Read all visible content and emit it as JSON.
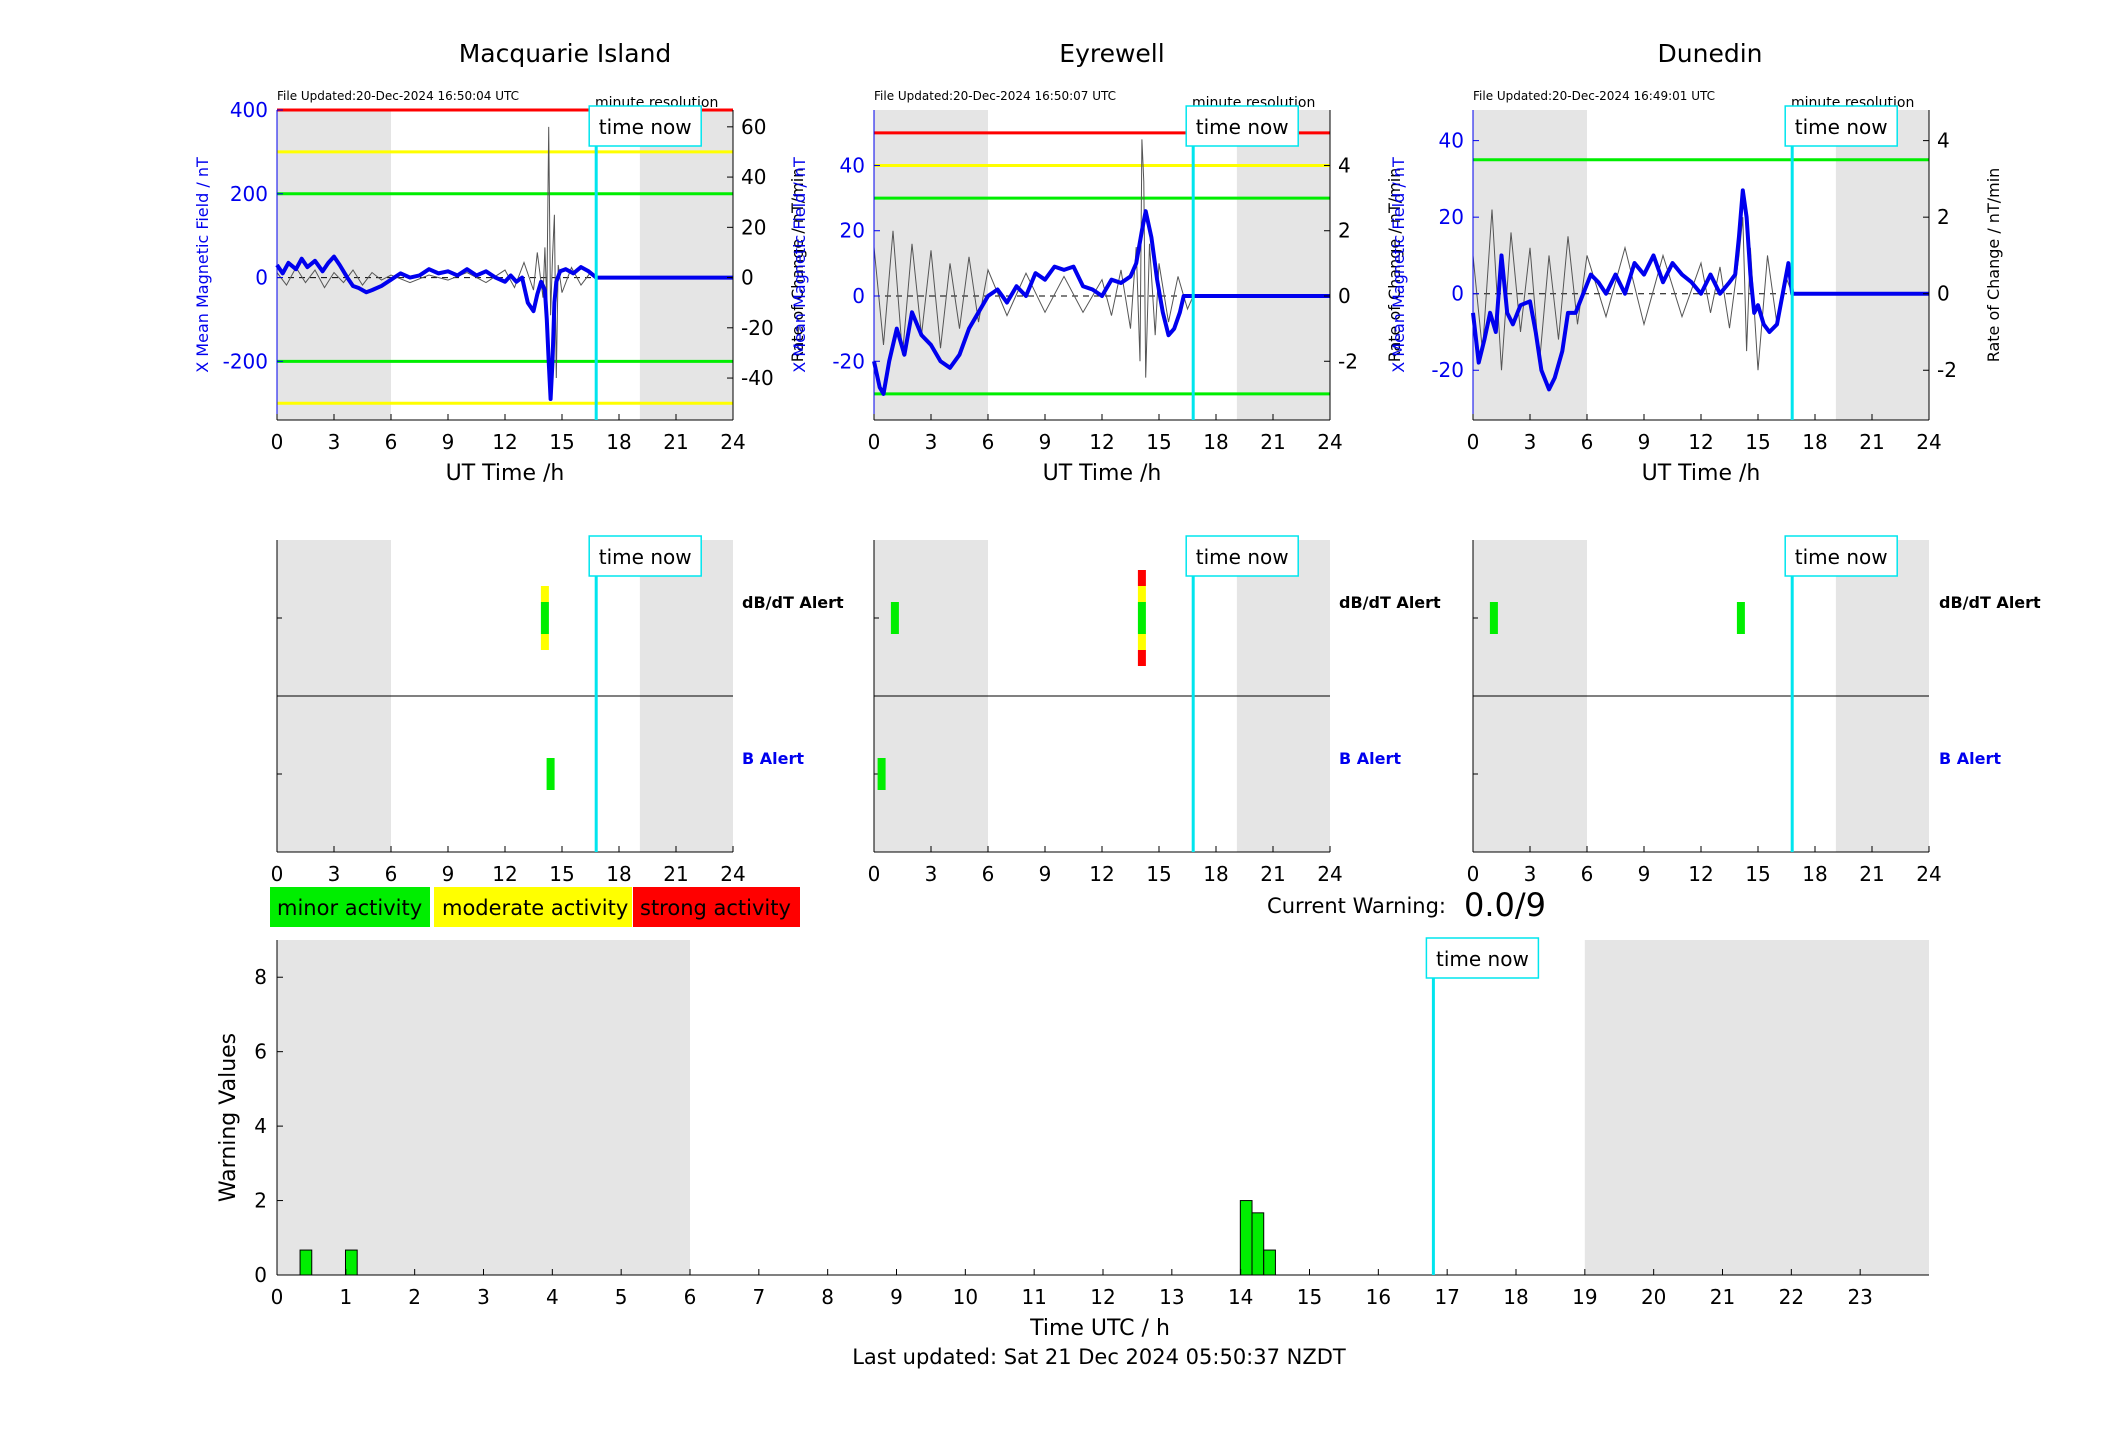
{
  "colors": {
    "field": "#0000ee",
    "rate": "#555555",
    "night": "#e5e5e5",
    "now": "#00e5ee",
    "red": "#ff0000",
    "yellow": "#ffff00",
    "green": "#00ee00",
    "black": "#000000"
  },
  "labels": {
    "ylabel_left": "X Mean Magnetic Field / nT",
    "ylabel_right": "Rate of Change / nT/min",
    "xlabel": "UT Time /h",
    "minute_resolution": "minute resolution",
    "time_now": "time now",
    "dbdt_alert": "dB/dT Alert",
    "b_alert": "B Alert"
  },
  "legend": {
    "items": [
      {
        "label": "minor activity",
        "color": "#00ee00"
      },
      {
        "label": "moderate activity",
        "color": "#ffff00"
      },
      {
        "label": "strong activity",
        "color": "#ff0000"
      }
    ]
  },
  "warning": {
    "label": "Current Warning:",
    "value": "0.0/9"
  },
  "footer": {
    "last_updated": "Last updated: Sat 21 Dec 2024 05:50:37 NZDT"
  },
  "chart_data": [
    {
      "type": "line",
      "title": "Macquarie Island",
      "file_updated": "File Updated:20-Dec-2024 16:50:04 UTC",
      "xlabel": "UT Time /h",
      "ylabel": "X Mean Magnetic Field / nT",
      "ylabel_right": "Rate of Change / nT/min",
      "xlim": [
        0,
        24
      ],
      "xticks": [
        0,
        3,
        6,
        9,
        12,
        15,
        18,
        21,
        24
      ],
      "ylim": [
        -340,
        400
      ],
      "yticks": [
        -200,
        0,
        200,
        400
      ],
      "ylim_right": [
        -56.7,
        66.7
      ],
      "yticks_right": [
        -40,
        -20,
        0,
        20,
        40,
        60
      ],
      "night": [
        [
          0,
          6
        ],
        [
          19.1,
          24
        ]
      ],
      "now": 16.8,
      "thresholds": [
        {
          "value": 400,
          "color": "#ff0000"
        },
        {
          "value": 300,
          "color": "#ffff00"
        },
        {
          "value": -300,
          "color": "#ffff00"
        },
        {
          "value": 200,
          "color": "#00ee00"
        },
        {
          "value": -200,
          "color": "#00ee00"
        }
      ],
      "series": [
        {
          "x": [
            0,
            0.3,
            0.6,
            1.0,
            1.3,
            1.6,
            2.0,
            2.4,
            2.7,
            3.0,
            3.3,
            3.7,
            4.0,
            4.3,
            4.7,
            5.0,
            5.5,
            6.0,
            6.5,
            7.0,
            7.5,
            8.0,
            8.5,
            9.0,
            9.5,
            10.0,
            10.5,
            11.0,
            11.5,
            12.0,
            12.3,
            12.6,
            12.9,
            13.2,
            13.5,
            13.7,
            13.9,
            14.1,
            14.2,
            14.3,
            14.4,
            14.5,
            14.6,
            14.7,
            14.9,
            15.2,
            15.6,
            16.0,
            16.4,
            16.8,
            24
          ],
          "values": [
            30,
            10,
            35,
            20,
            45,
            25,
            40,
            15,
            35,
            50,
            30,
            0,
            -20,
            -25,
            -35,
            -30,
            -20,
            -5,
            10,
            0,
            5,
            20,
            10,
            15,
            5,
            20,
            5,
            15,
            0,
            -10,
            5,
            -10,
            0,
            -60,
            -80,
            -40,
            -10,
            -30,
            -100,
            -200,
            -290,
            -200,
            -60,
            -10,
            15,
            20,
            10,
            25,
            15,
            0,
            0
          ]
        },
        {
          "x": [
            0,
            0.5,
            1.0,
            1.5,
            2.0,
            2.5,
            3.0,
            3.5,
            4.0,
            4.5,
            5.0,
            5.5,
            6.0,
            7.0,
            8.0,
            9.0,
            10.0,
            11.0,
            12.0,
            12.5,
            13.0,
            13.5,
            13.7,
            14.0,
            14.1,
            14.2,
            14.3,
            14.4,
            14.5,
            14.6,
            14.7,
            14.8,
            15.0,
            15.5,
            16.0,
            16.5,
            16.8
          ],
          "values": [
            2,
            -3,
            4,
            -2,
            3,
            -4,
            2,
            -2,
            3,
            -3,
            2,
            -1,
            1,
            -2,
            1,
            -1,
            2,
            -2,
            3,
            -4,
            6,
            -5,
            10,
            -8,
            12,
            -10,
            60,
            -15,
            8,
            25,
            -40,
            5,
            -6,
            4,
            -3,
            2,
            0
          ]
        }
      ]
    },
    {
      "type": "line",
      "title": "Eyrewell",
      "file_updated": "File Updated:20-Dec-2024 16:50:07 UTC",
      "xlabel": "UT Time /h",
      "ylabel": "X Mean Magnetic Field / nT",
      "ylabel_right": "Rate of Change / nT/min",
      "xlim": [
        0,
        24
      ],
      "xticks": [
        0,
        3,
        6,
        9,
        12,
        15,
        18,
        21,
        24
      ],
      "ylim": [
        -38,
        57
      ],
      "yticks": [
        -20,
        0,
        20,
        40
      ],
      "ylim_right": [
        -3.8,
        5.7
      ],
      "yticks_right": [
        -2,
        0,
        2,
        4
      ],
      "night": [
        [
          0,
          6
        ],
        [
          19.1,
          24
        ]
      ],
      "now": 16.8,
      "thresholds": [
        {
          "value": 50,
          "color": "#ff0000"
        },
        {
          "value": 40,
          "color": "#ffff00"
        },
        {
          "value": 30,
          "color": "#00ee00"
        },
        {
          "value": -30,
          "color": "#00ee00"
        }
      ],
      "series": [
        {
          "x": [
            0,
            0.3,
            0.5,
            0.8,
            1.2,
            1.6,
            2.0,
            2.5,
            3.0,
            3.5,
            4.0,
            4.5,
            5.0,
            5.5,
            6.0,
            6.5,
            7.0,
            7.5,
            8.0,
            8.5,
            9.0,
            9.5,
            10.0,
            10.5,
            11.0,
            11.5,
            12.0,
            12.5,
            13.0,
            13.5,
            13.8,
            14.1,
            14.3,
            14.6,
            14.9,
            15.2,
            15.5,
            15.8,
            16.1,
            16.3,
            16.8,
            24
          ],
          "values": [
            -20,
            -28,
            -30,
            -20,
            -10,
            -18,
            -5,
            -12,
            -15,
            -20,
            -22,
            -18,
            -10,
            -5,
            0,
            2,
            -2,
            3,
            0,
            7,
            5,
            9,
            8,
            9,
            3,
            2,
            0,
            5,
            4,
            6,
            10,
            20,
            26,
            18,
            5,
            -5,
            -12,
            -10,
            -5,
            0,
            0,
            0
          ]
        },
        {
          "x": [
            0,
            0.5,
            1.0,
            1.5,
            2.0,
            2.5,
            3.0,
            3.5,
            4.0,
            4.5,
            5.0,
            5.5,
            6.0,
            7.0,
            8.0,
            9.0,
            10.0,
            11.0,
            12.0,
            12.5,
            13.0,
            13.5,
            13.8,
            14.0,
            14.1,
            14.2,
            14.3,
            14.5,
            14.8,
            15.0,
            15.5,
            16.0,
            16.5,
            16.8
          ],
          "values": [
            1.5,
            -1.5,
            2.0,
            -1.8,
            1.6,
            -1.2,
            1.4,
            -1.6,
            1.0,
            -1.0,
            1.2,
            -0.8,
            0.8,
            -0.6,
            0.7,
            -0.5,
            0.6,
            -0.5,
            0.5,
            -0.6,
            0.8,
            -1.0,
            1.5,
            -2.0,
            4.8,
            3.5,
            -2.5,
            1.6,
            -1.2,
            1.0,
            -0.8,
            0.6,
            -0.4,
            0
          ]
        }
      ]
    },
    {
      "type": "line",
      "title": "Dunedin",
      "file_updated": "File Updated:20-Dec-2024 16:49:01 UTC",
      "xlabel": "UT Time /h",
      "ylabel": "X Mean Magnetic Field / nT",
      "ylabel_right": "Rate of Change / nT/min",
      "xlim": [
        0,
        24
      ],
      "xticks": [
        0,
        3,
        6,
        9,
        12,
        15,
        18,
        21,
        24
      ],
      "ylim": [
        -33,
        48
      ],
      "yticks": [
        -20,
        0,
        20,
        40
      ],
      "ylim_right": [
        -3.3,
        4.8
      ],
      "yticks_right": [
        -2,
        0,
        2,
        4
      ],
      "night": [
        [
          0,
          6
        ],
        [
          19.1,
          24
        ]
      ],
      "now": 16.8,
      "thresholds": [
        {
          "value": 35,
          "color": "#00ee00"
        }
      ],
      "series": [
        {
          "x": [
            0,
            0.3,
            0.6,
            0.9,
            1.2,
            1.5,
            1.8,
            2.1,
            2.5,
            3.0,
            3.3,
            3.6,
            4.0,
            4.3,
            4.7,
            5.0,
            5.4,
            5.8,
            6.2,
            6.6,
            7.0,
            7.5,
            8.0,
            8.5,
            9.0,
            9.5,
            10.0,
            10.5,
            11.0,
            11.5,
            12.0,
            12.5,
            13.0,
            13.5,
            13.8,
            14.0,
            14.2,
            14.4,
            14.6,
            14.8,
            15.0,
            15.3,
            15.6,
            16.0,
            16.3,
            16.6,
            16.8,
            24
          ],
          "values": [
            -5,
            -18,
            -12,
            -5,
            -10,
            10,
            -5,
            -8,
            -3,
            -2,
            -10,
            -20,
            -25,
            -22,
            -15,
            -5,
            -5,
            0,
            5,
            3,
            0,
            5,
            0,
            8,
            5,
            10,
            3,
            8,
            5,
            3,
            0,
            5,
            0,
            3,
            5,
            15,
            27,
            20,
            5,
            -5,
            -3,
            -8,
            -10,
            -8,
            0,
            8,
            0,
            0
          ]
        },
        {
          "x": [
            0,
            0.5,
            1.0,
            1.5,
            2.0,
            2.5,
            3.0,
            3.5,
            4.0,
            4.5,
            5.0,
            5.5,
            6.0,
            7.0,
            8.0,
            9.0,
            10.0,
            11.0,
            12.0,
            12.5,
            13.0,
            13.5,
            14.0,
            14.2,
            14.4,
            14.6,
            15.0,
            15.5,
            16.0,
            16.5,
            16.8
          ],
          "values": [
            1.0,
            -1.5,
            2.2,
            -2.0,
            1.6,
            -1.0,
            1.2,
            -1.8,
            1.0,
            -1.2,
            1.5,
            -0.8,
            1.0,
            -0.6,
            1.2,
            -0.8,
            1.0,
            -0.6,
            0.8,
            -0.5,
            0.7,
            -0.9,
            1.0,
            2.0,
            -1.5,
            1.2,
            -2.0,
            1.0,
            -0.8,
            0.4,
            0
          ]
        }
      ]
    },
    {
      "type": "alerts",
      "title": "Macquarie Island",
      "xlim": [
        0,
        24
      ],
      "xticks": [
        0,
        3,
        6,
        9,
        12,
        15,
        18,
        21,
        24
      ],
      "night": [
        [
          0,
          6
        ],
        [
          19.1,
          24
        ]
      ],
      "now": 16.8,
      "dbdt": [
        {
          "x": 14.1,
          "levels": [
            "yellow",
            "green",
            "green",
            "yellow"
          ]
        }
      ],
      "b": [
        {
          "x": 14.4,
          "levels": [
            "green",
            "green"
          ]
        }
      ]
    },
    {
      "type": "alerts",
      "title": "Eyrewell",
      "xlim": [
        0,
        24
      ],
      "xticks": [
        0,
        3,
        6,
        9,
        12,
        15,
        18,
        21,
        24
      ],
      "night": [
        [
          0,
          6
        ],
        [
          19.1,
          24
        ]
      ],
      "now": 16.8,
      "dbdt": [
        {
          "x": 1.1,
          "levels": [
            "green",
            "green"
          ]
        },
        {
          "x": 14.1,
          "levels": [
            "red",
            "yellow",
            "green",
            "green",
            "yellow",
            "red"
          ]
        }
      ],
      "b": [
        {
          "x": 0.4,
          "levels": [
            "green",
            "green"
          ]
        }
      ]
    },
    {
      "type": "alerts",
      "title": "Dunedin",
      "xlim": [
        0,
        24
      ],
      "xticks": [
        0,
        3,
        6,
        9,
        12,
        15,
        18,
        21,
        24
      ],
      "night": [
        [
          0,
          6
        ],
        [
          19.1,
          24
        ]
      ],
      "now": 16.8,
      "dbdt": [
        {
          "x": 1.1,
          "levels": [
            "green",
            "green"
          ]
        },
        {
          "x": 14.1,
          "levels": [
            "green",
            "green"
          ]
        }
      ],
      "b": []
    },
    {
      "type": "bar",
      "title": "",
      "xlabel": "Time UTC / h",
      "ylabel": "Warning Values",
      "xlim": [
        0,
        24
      ],
      "xticks": [
        0,
        1,
        2,
        3,
        4,
        5,
        6,
        7,
        8,
        9,
        10,
        11,
        12,
        13,
        14,
        15,
        16,
        17,
        18,
        19,
        20,
        21,
        22,
        23
      ],
      "ylim": [
        0,
        9
      ],
      "yticks": [
        0,
        2,
        4,
        6,
        8
      ],
      "night": [
        [
          0,
          6
        ],
        [
          19,
          24
        ]
      ],
      "now": 16.8,
      "x": [
        0.42,
        1.08,
        14.08,
        14.25,
        14.42
      ],
      "values": [
        0.67,
        0.67,
        2.0,
        1.67,
        0.67
      ],
      "bar_width": 0.17
    }
  ]
}
